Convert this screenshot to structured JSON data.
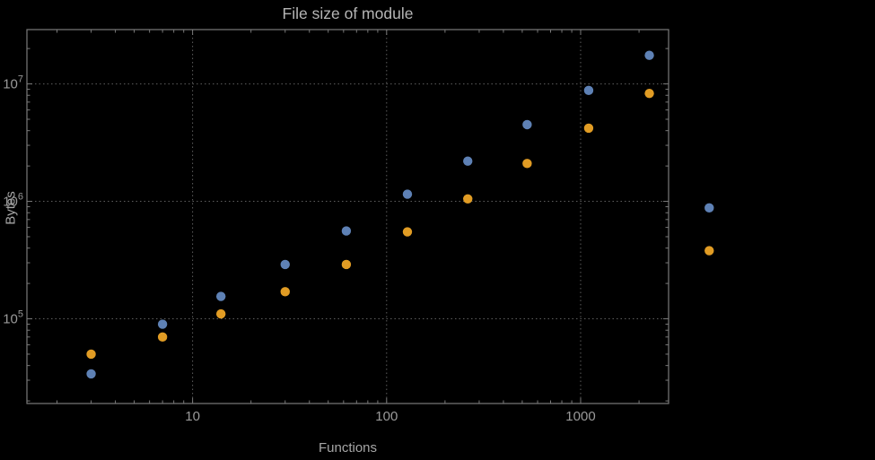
{
  "colors": {
    "background": "#000000",
    "frame": "#7a7a7a",
    "grid": "#5e5e5e",
    "tick": "#7a7a7a",
    "tick_label": "#9a9a9a",
    "axis_label": "#a6a6a6",
    "title": "#b5b5b5"
  },
  "chart_data": {
    "type": "scatter",
    "title": "File size of module",
    "xlabel": "Functions",
    "ylabel": "Bytes",
    "x_scale": "log",
    "y_scale": "log",
    "grid": "dotted",
    "legend": "none",
    "x_range": [
      1.4,
      2840
    ],
    "y_range": [
      19000,
      29000000
    ],
    "x_ticks": [
      10,
      100,
      1000
    ],
    "x_tick_labels": [
      "10",
      "100",
      "1000"
    ],
    "y_ticks": [
      100000,
      1000000,
      10000000
    ],
    "y_tick_labels": [
      {
        "base": "10",
        "exp": "5"
      },
      {
        "base": "10",
        "exp": "6"
      },
      {
        "base": "10",
        "exp": "7"
      }
    ],
    "x": [
      3,
      7,
      14,
      30,
      62,
      128,
      262,
      530,
      1100,
      2260,
      4600
    ],
    "series": [
      {
        "name": "blue",
        "color": "#5E81B5",
        "values": [
          34000,
          90000,
          155000,
          290000,
          560000,
          1150000,
          2200000,
          4500000,
          8800000,
          17500000,
          880000
        ]
      },
      {
        "name": "orange",
        "color": "#E19C24",
        "values": [
          50000,
          70000,
          110000,
          170000,
          290000,
          550000,
          1050000,
          2100000,
          4200000,
          8300000,
          380000
        ]
      }
    ]
  }
}
